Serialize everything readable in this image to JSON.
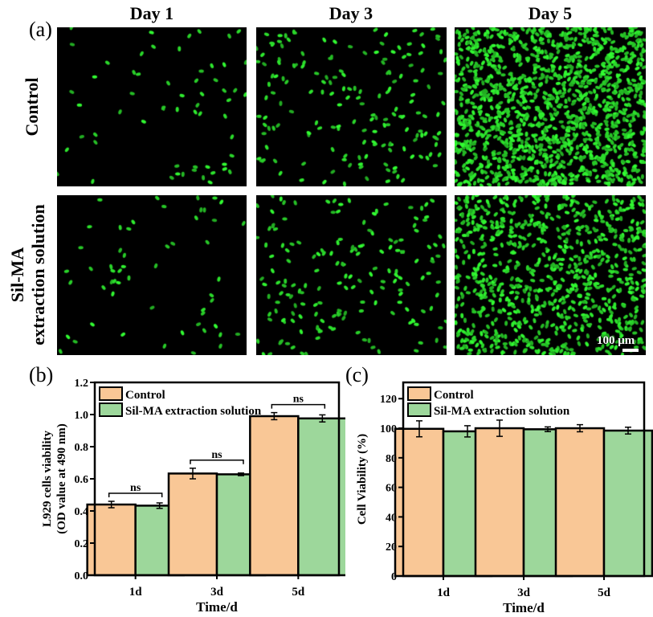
{
  "figure": {
    "panel_labels": [
      "(a)",
      "(b)",
      "(c)"
    ],
    "columns": [
      "Day 1",
      "Day 3",
      "Day 5"
    ],
    "rows": [
      "Control",
      "Sil-MA extraction solution"
    ],
    "row_label_lines": [
      [
        "Control"
      ],
      [
        "Sil-MA",
        "extraction solution"
      ]
    ],
    "scale_bar": "100 μm",
    "cell_density": [
      [
        60,
        170,
        1300
      ],
      [
        55,
        170,
        800
      ]
    ],
    "colors": {
      "cells": "#2fd52f",
      "background": "#000000",
      "control": "#f9c796",
      "silma": "#9dd79b"
    }
  },
  "chart_data": [
    {
      "type": "bar",
      "panel": "(b)",
      "categories": [
        "1d",
        "3d",
        "5d"
      ],
      "series": [
        {
          "name": "Control",
          "values": [
            0.44,
            0.633,
            0.99
          ],
          "errors": [
            0.02,
            0.033,
            0.022
          ]
        },
        {
          "name": "Sil-MA extraction solution",
          "values": [
            0.433,
            0.628,
            0.976
          ],
          "errors": [
            0.017,
            0.008,
            0.022
          ]
        }
      ],
      "annotations": [
        "ns",
        "ns",
        "ns"
      ],
      "xlabel": "Time/d",
      "ylabel_lines": [
        "L929 cells viability",
        "(OD value at 490 nm)"
      ],
      "ylim": [
        0,
        1.2
      ],
      "yticks": [
        "0.0",
        "0.2",
        "0.4",
        "0.6",
        "0.8",
        "1.0",
        "1.2"
      ],
      "legend": "top-left"
    },
    {
      "type": "bar",
      "panel": "(c)",
      "categories": [
        "1d",
        "3d",
        "5d"
      ],
      "series": [
        {
          "name": "Control",
          "values": [
            99.6,
            100,
            100
          ],
          "errors": [
            5.4,
            5.5,
            2.4
          ]
        },
        {
          "name": "Sil-MA extraction solution",
          "values": [
            97.9,
            99.3,
            98.4
          ],
          "errors": [
            3.8,
            1.6,
            2.3
          ]
        }
      ],
      "xlabel": "Time/d",
      "ylabel_lines": [
        "Cell Viability (%)"
      ],
      "ylim": [
        0,
        131
      ],
      "yticks": [
        "0",
        "20",
        "40",
        "60",
        "80",
        "100",
        "120"
      ],
      "legend": "top-left"
    }
  ]
}
